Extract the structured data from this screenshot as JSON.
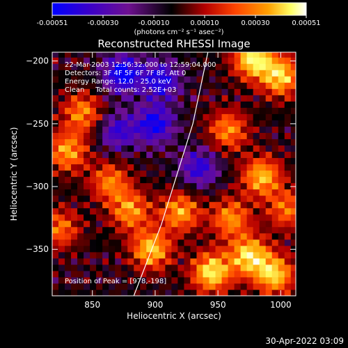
{
  "colorbar": {
    "ticks": [
      "-0.00051",
      "-0.00030",
      "-0.00010",
      "0.00010",
      "0.00030",
      "0.00051"
    ],
    "unit_label": "(photons cm⁻² s⁻¹ asec⁻²)"
  },
  "chart_data": {
    "type": "heatmap",
    "title": "Reconstructed RHESSI Image",
    "xlabel": "Heliocentric X (arcsec)",
    "ylabel": "Heliocentric Y (arcsec)",
    "xlim": [
      818,
      1012
    ],
    "ylim": [
      -387,
      -193
    ],
    "xticks": [
      850,
      900,
      950,
      1000
    ],
    "yticks": [
      -200,
      -250,
      -300,
      -350
    ],
    "colorbar_range": [
      -0.00051,
      0.00051
    ],
    "colormap": [
      "#0000ff",
      "#3c00c8",
      "#6e1090",
      "#000000",
      "#b40000",
      "#ff4400",
      "#ffa000",
      "#ffff66",
      "#ffffff"
    ],
    "annotations": [
      "22-Mar-2003 12:56:32.000 to 12:59:04.000",
      "Detectors: 3F 4F 5F 6F 7F 8F, Att 0",
      "Energy Range: 12.0 - 25.0 keV",
      "Clean     Total counts: 2.52E+03",
      "Position of Peak = [978,-198]"
    ],
    "limb_arc": [
      [
        942,
        -193
      ],
      [
        930,
        -250
      ],
      [
        905,
        -330
      ],
      [
        883,
        -387
      ]
    ],
    "bright_regions": [
      {
        "x": 842,
        "y": -241,
        "v": 0.00034
      },
      {
        "x": 830,
        "y": -272,
        "v": 0.00038
      },
      {
        "x": 864,
        "y": -296,
        "v": 0.00032
      },
      {
        "x": 824,
        "y": -333,
        "v": 0.0003
      },
      {
        "x": 880,
        "y": -319,
        "v": 0.00036
      },
      {
        "x": 897,
        "y": -350,
        "v": 0.00044
      },
      {
        "x": 920,
        "y": -320,
        "v": 0.00038
      },
      {
        "x": 945,
        "y": -368,
        "v": 0.0005
      },
      {
        "x": 975,
        "y": -355,
        "v": 0.00048
      },
      {
        "x": 995,
        "y": -370,
        "v": 0.00045
      },
      {
        "x": 960,
        "y": -325,
        "v": 0.00035
      },
      {
        "x": 978,
        "y": -198,
        "v": 0.00051
      },
      {
        "x": 1000,
        "y": -212,
        "v": 0.00046
      },
      {
        "x": 958,
        "y": -255,
        "v": 0.00034
      },
      {
        "x": 985,
        "y": -292,
        "v": 0.00042
      },
      {
        "x": 1005,
        "y": -318,
        "v": 0.0003
      }
    ],
    "dark_regions": [
      {
        "x": 874,
        "y": -210,
        "v": -0.0004
      },
      {
        "x": 905,
        "y": -215,
        "v": -0.00034
      },
      {
        "x": 900,
        "y": -250,
        "v": -0.00036
      },
      {
        "x": 870,
        "y": -256,
        "v": -0.00028
      },
      {
        "x": 935,
        "y": -285,
        "v": -0.0003
      }
    ]
  },
  "footer": {
    "timestamp": "30-Apr-2022 03:09"
  }
}
